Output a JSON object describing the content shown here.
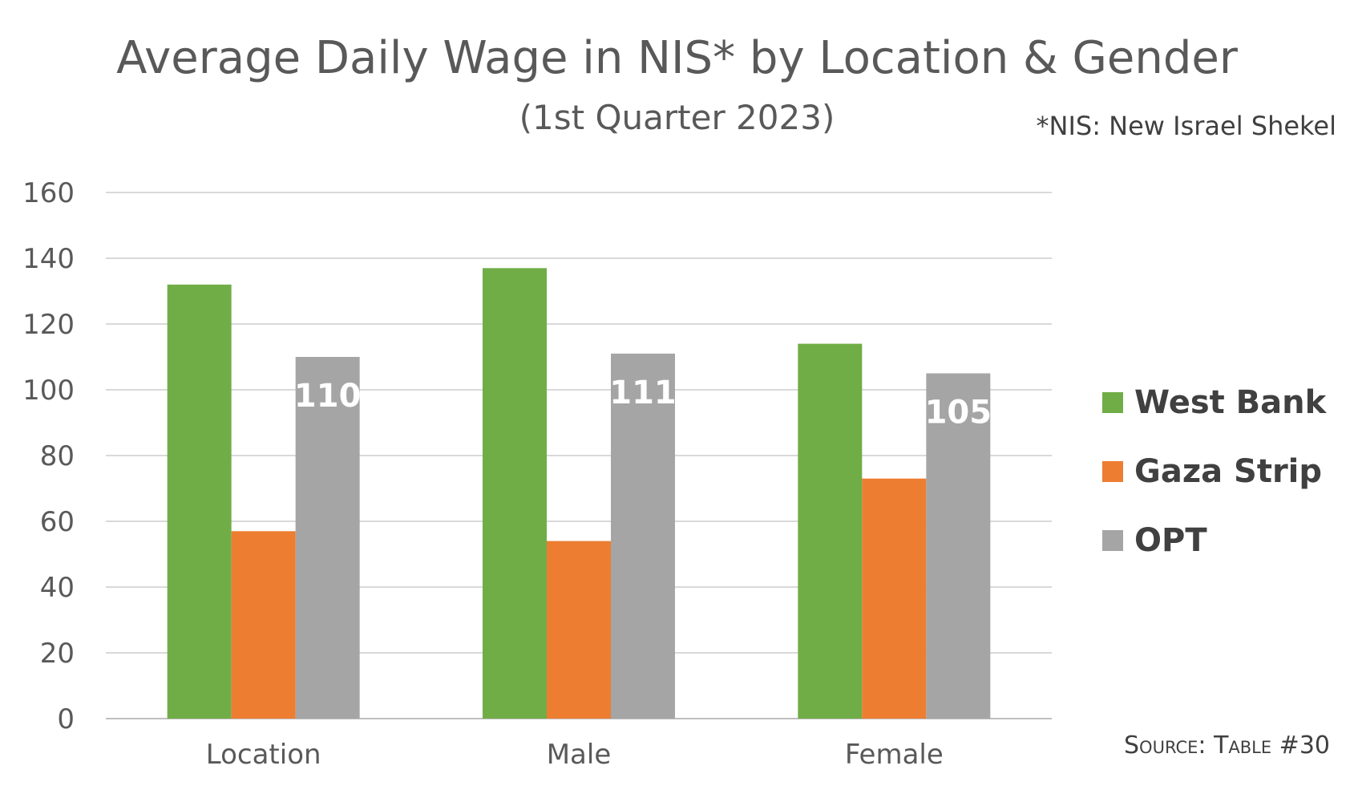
{
  "chart_data": {
    "type": "bar",
    "title": "Average Daily Wage in NIS* by Location & Gender",
    "subtitle": "(1st Quarter 2023)",
    "note": "*NIS: New Israel Shekel",
    "source": "Source: Table #30",
    "categories": [
      "Location",
      "Male",
      "Female"
    ],
    "series": [
      {
        "name": "West Bank",
        "color": "#70AD47",
        "values": [
          132,
          137,
          114
        ]
      },
      {
        "name": "Gaza Strip",
        "color": "#ED7D31",
        "values": [
          57,
          54,
          73
        ]
      },
      {
        "name": "OPT",
        "color": "#A5A5A5",
        "values": [
          110,
          111,
          105
        ]
      }
    ],
    "data_labels": {
      "series": "OPT",
      "values": [
        "110",
        "111",
        "105"
      ]
    },
    "ylim": [
      0,
      160
    ],
    "yticks": [
      "0",
      "20",
      "40",
      "60",
      "80",
      "100",
      "120",
      "140",
      "160"
    ],
    "grid": true,
    "legend_position": "right"
  }
}
